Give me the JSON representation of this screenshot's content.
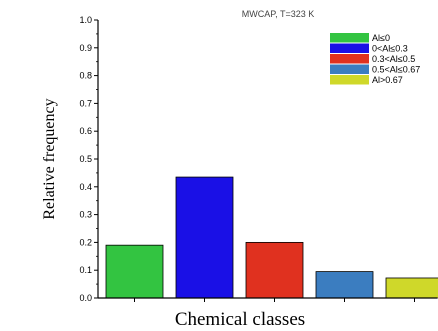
{
  "chart_data": {
    "type": "bar",
    "title": "MWCAP, T=323 K",
    "xlabel": "Chemical classes",
    "ylabel": "Relative frequency",
    "ylim": [
      0.0,
      1.0
    ],
    "yticks": [
      "0.0",
      "0.1",
      "0.2",
      "0.3",
      "0.4",
      "0.5",
      "0.6",
      "0.7",
      "0.8",
      "0.9",
      "1.0"
    ],
    "categories": [
      "Al≤0",
      "0<Al≤0.3",
      "0.3<Al≤0.5",
      "0.5<Al≤0.67",
      "Al>0.67"
    ],
    "values": [
      0.19,
      0.435,
      0.2,
      0.095,
      0.072
    ],
    "colors": [
      "#33c441",
      "#1a10e6",
      "#e0311f",
      "#3b7dc0",
      "#cfd82a"
    ],
    "legend_position": "top-right",
    "grid": false
  }
}
